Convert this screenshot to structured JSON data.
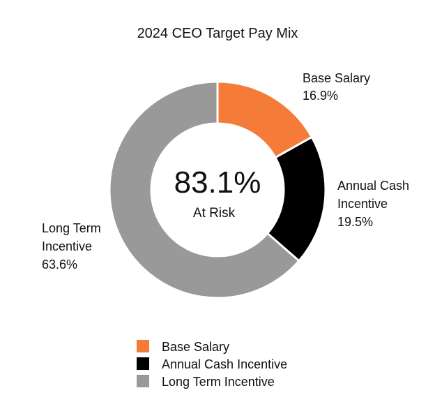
{
  "chart_data": {
    "type": "pie",
    "variant": "donut",
    "title": "2024 CEO Target Pay Mix",
    "center_text": {
      "value": "83.1%",
      "label": "At Risk"
    },
    "slices": [
      {
        "name": "Base Salary",
        "label_lines": [
          "Base Salary"
        ],
        "value": 16.9,
        "value_text": "16.9%",
        "color": "#F47B38"
      },
      {
        "name": "Annual Cash Incentive",
        "label_lines": [
          "Annual Cash",
          "Incentive"
        ],
        "value": 19.5,
        "value_text": "19.5%",
        "color": "#000000"
      },
      {
        "name": "Long Term Incentive",
        "label_lines": [
          "Long Term",
          "Incentive"
        ],
        "value": 63.6,
        "value_text": "63.6%",
        "color": "#999999"
      }
    ],
    "legend": [
      {
        "label": "Base Salary",
        "color": "#F47B38"
      },
      {
        "label": "Annual Cash Incentive",
        "color": "#000000"
      },
      {
        "label": "Long Term Incentive",
        "color": "#999999"
      }
    ],
    "legend_position": "bottom"
  }
}
